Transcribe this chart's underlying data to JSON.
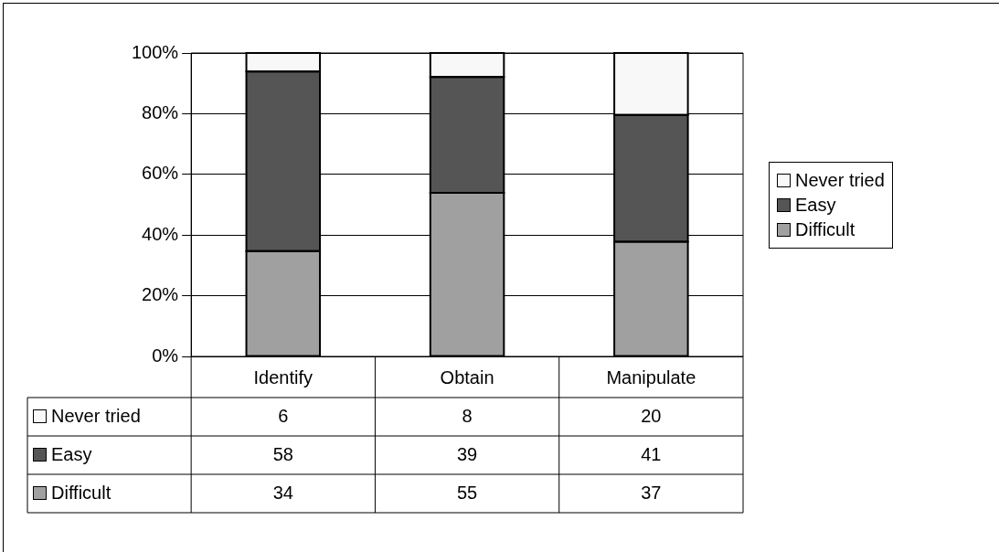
{
  "chart_data": {
    "type": "bar",
    "stacked": true,
    "categories": [
      "Identify",
      "Obtain",
      "Manipulate"
    ],
    "series": [
      {
        "name": "Difficult",
        "color": "#a0a0a0",
        "values": [
          34.7,
          53.9,
          37.8
        ]
      },
      {
        "name": "Easy",
        "color": "#555555",
        "values": [
          59.2,
          38.2,
          41.8
        ]
      },
      {
        "name": "Never tried",
        "color": "#f8f8f8",
        "values": [
          6.1,
          7.9,
          20.4
        ]
      }
    ],
    "annotations": [
      "6",
      "8",
      "20",
      "58",
      "39",
      "41",
      "34",
      "55",
      "37"
    ],
    "ylim": [
      0,
      100
    ],
    "yticks": [
      {
        "value": 0,
        "label": "0%"
      },
      {
        "value": 20,
        "label": "20%"
      },
      {
        "value": 40,
        "label": "40%"
      },
      {
        "value": 60,
        "label": "60%"
      },
      {
        "value": 80,
        "label": "80%"
      },
      {
        "value": 100,
        "label": "100%"
      }
    ],
    "grid": "y",
    "legend": "right"
  }
}
